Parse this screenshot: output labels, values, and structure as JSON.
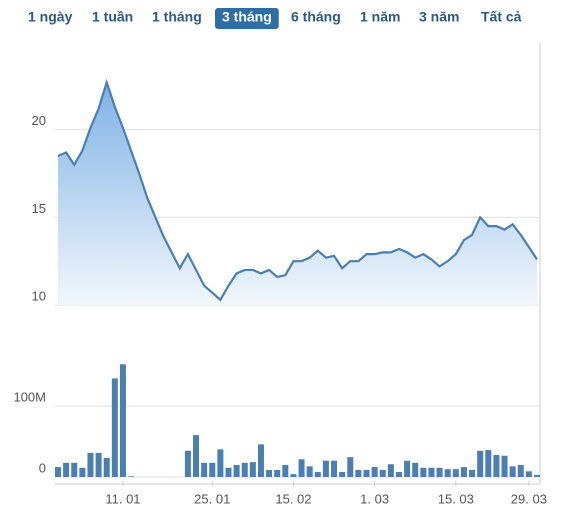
{
  "range_buttons": [
    "1 ngày",
    "1 tuần",
    "1 tháng",
    "3 tháng",
    "6 tháng",
    "1 năm",
    "3 năm",
    "Tất cả"
  ],
  "selected_range": 3,
  "chart_data": [
    {
      "type": "area",
      "color": "#4a7fb0",
      "values": [
        18.5,
        18.7,
        18.0,
        18.8,
        20.1,
        21.2,
        22.7,
        21.3,
        20.1,
        18.8,
        17.5,
        16.1,
        15.0,
        13.9,
        13.0,
        12.1,
        12.9,
        12.0,
        11.1,
        10.7,
        10.3,
        11.1,
        11.8,
        12.0,
        12.0,
        11.8,
        12.0,
        11.6,
        11.7,
        12.5,
        12.5,
        12.7,
        13.1,
        12.7,
        12.8,
        12.1,
        12.5,
        12.5,
        12.9,
        12.9,
        13.0,
        13.0,
        13.2,
        13.0,
        12.7,
        12.9,
        12.6,
        12.2,
        12.5,
        12.9,
        13.7,
        14.0,
        15.0,
        14.5,
        14.5,
        14.3,
        14.6,
        14.0,
        13.3,
        12.6
      ],
      "ylim": [
        10,
        25
      ],
      "yticks": [
        10,
        15,
        20
      ],
      "grid": true
    },
    {
      "type": "bar",
      "color": "#4a7fb0",
      "categories": [
        null,
        null,
        null,
        null,
        null,
        null,
        null,
        null,
        "11. 01",
        null,
        null,
        null,
        null,
        null,
        null,
        null,
        null,
        null,
        null,
        "25. 01",
        null,
        null,
        null,
        null,
        null,
        null,
        null,
        null,
        null,
        "15. 02",
        null,
        null,
        null,
        null,
        null,
        null,
        null,
        null,
        null,
        "1. 03",
        null,
        null,
        null,
        null,
        null,
        null,
        null,
        null,
        null,
        "15. 03",
        null,
        null,
        null,
        null,
        null,
        null,
        null,
        null,
        "29. 03",
        null
      ],
      "values": [
        14000000,
        20000000,
        20000000,
        13000000,
        34000000,
        34000000,
        27000000,
        139000000,
        159000000,
        1000000,
        0,
        0,
        0,
        0,
        0,
        0,
        37000000,
        59000000,
        20000000,
        20000000,
        39000000,
        13000000,
        17000000,
        20000000,
        21000000,
        46000000,
        10000000,
        10000000,
        17000000,
        4000000,
        25000000,
        15000000,
        7000000,
        23000000,
        23000000,
        7000000,
        28000000,
        10000000,
        10000000,
        14000000,
        10000000,
        18000000,
        7000000,
        23000000,
        20000000,
        13000000,
        13000000,
        13000000,
        11000000,
        11000000,
        14000000,
        10000000,
        37000000,
        38000000,
        31000000,
        30000000,
        15000000,
        17000000,
        8000000,
        3000000
      ],
      "ylim": [
        0,
        220000000
      ],
      "yticks": [
        0,
        {
          "value": 100000000,
          "label": "100M"
        }
      ],
      "grid": true
    }
  ]
}
